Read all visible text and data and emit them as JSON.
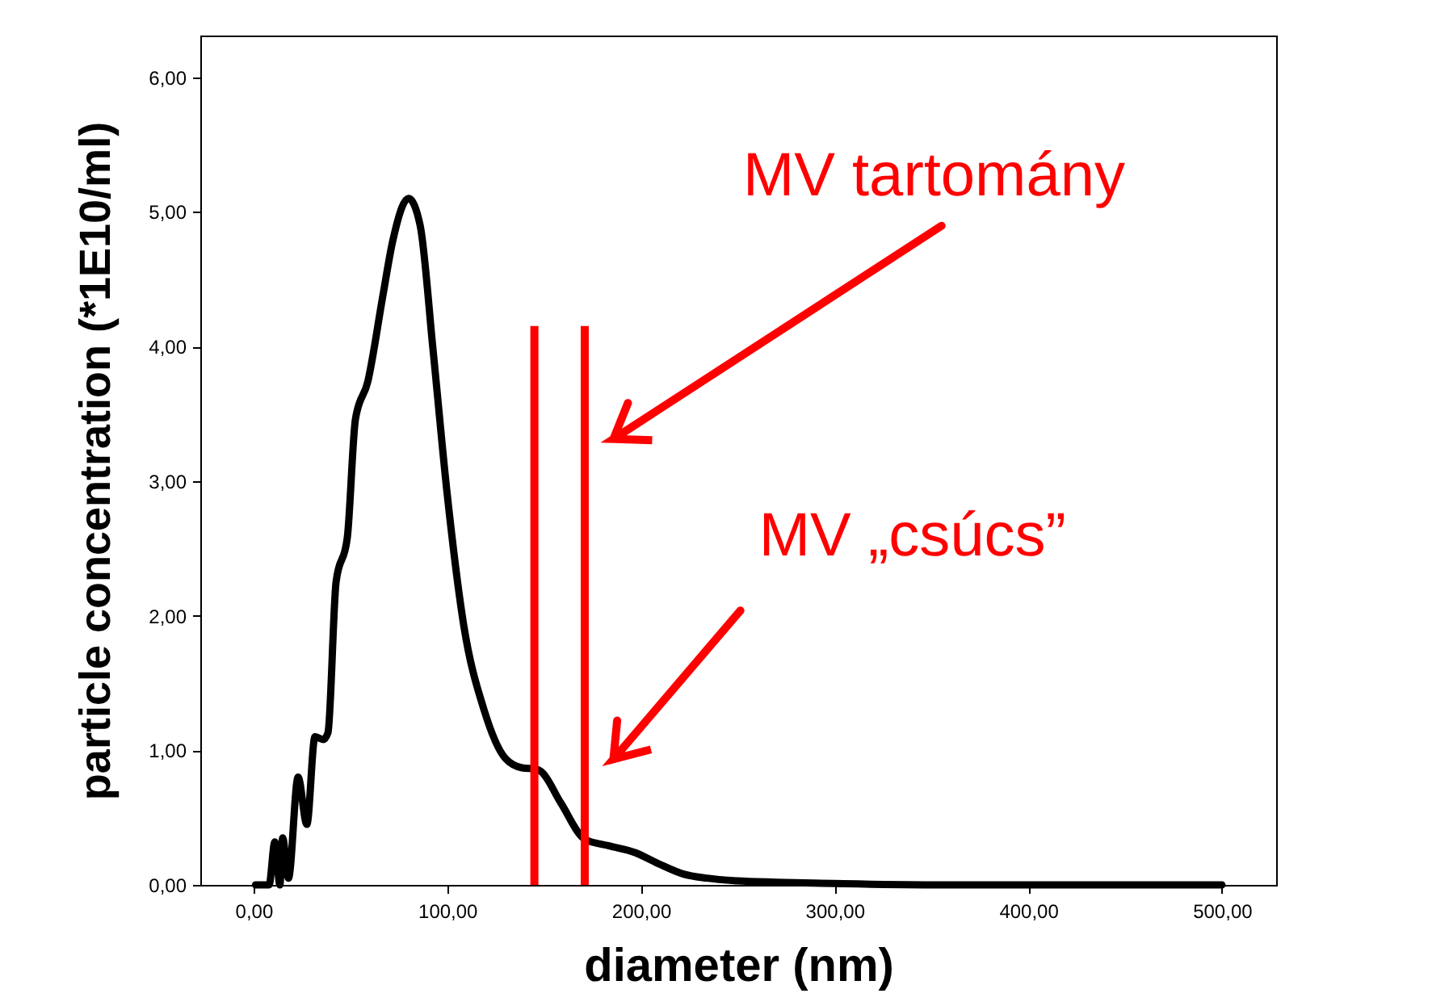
{
  "chart_data": {
    "type": "line",
    "xlabel": "diameter (nm)",
    "ylabel": "particle concentration (*1E10/ml)",
    "x": [
      1,
      8,
      11,
      13.6,
      15,
      18,
      23,
      27.5,
      31.7,
      36,
      38.4,
      42.6,
      48.4,
      52.6,
      59,
      66.8,
      71.8,
      80,
      86,
      92.7,
      100,
      108.5,
      119,
      130,
      138.6,
      146,
      148.6,
      158.6,
      171,
      183.6,
      197,
      208.7,
      222,
      234,
      250,
      270,
      300,
      350,
      400,
      450,
      500
    ],
    "series": [
      {
        "color": "#000000",
        "values": [
          0,
          0,
          0.32,
          0,
          0.35,
          0.05,
          0.8,
          0.45,
          1.1,
          1.08,
          1.13,
          2.25,
          2.58,
          3.46,
          3.74,
          4.38,
          4.78,
          5.1,
          4.9,
          3.97,
          2.9,
          1.93,
          1.3,
          0.94,
          0.87,
          0.86,
          0.84,
          0.61,
          0.34,
          0.29,
          0.24,
          0.16,
          0.08,
          0.05,
          0.03,
          0.02,
          0.01,
          0,
          0,
          0,
          0
        ]
      }
    ],
    "xlim": [
      -27.5,
      528
    ],
    "ylim": [
      0,
      6.31
    ],
    "xticks": [
      {
        "value": 0,
        "label": "0,00"
      },
      {
        "value": 100,
        "label": "100,00"
      },
      {
        "value": 200,
        "label": "200,00"
      },
      {
        "value": 300,
        "label": "300,00"
      },
      {
        "value": 400,
        "label": "400,00"
      },
      {
        "value": 500,
        "label": "500,00"
      }
    ],
    "yticks": [
      {
        "value": 0,
        "label": "0,00"
      },
      {
        "value": 1,
        "label": "1,00"
      },
      {
        "value": 2,
        "label": "2,00"
      },
      {
        "value": 3,
        "label": "3,00"
      },
      {
        "value": 4,
        "label": "4,00"
      },
      {
        "value": 5,
        "label": "5,00"
      },
      {
        "value": 6,
        "label": "6,00"
      }
    ],
    "ref_lines": [
      {
        "axis": "x",
        "value": 145,
        "color": "#ff0000"
      },
      {
        "axis": "x",
        "value": 171,
        "color": "#ff0000"
      }
    ],
    "annotations": [
      "MV tartomány",
      "MV „csúcs”"
    ],
    "grid": false,
    "marker": "none",
    "line_style": "solid"
  }
}
